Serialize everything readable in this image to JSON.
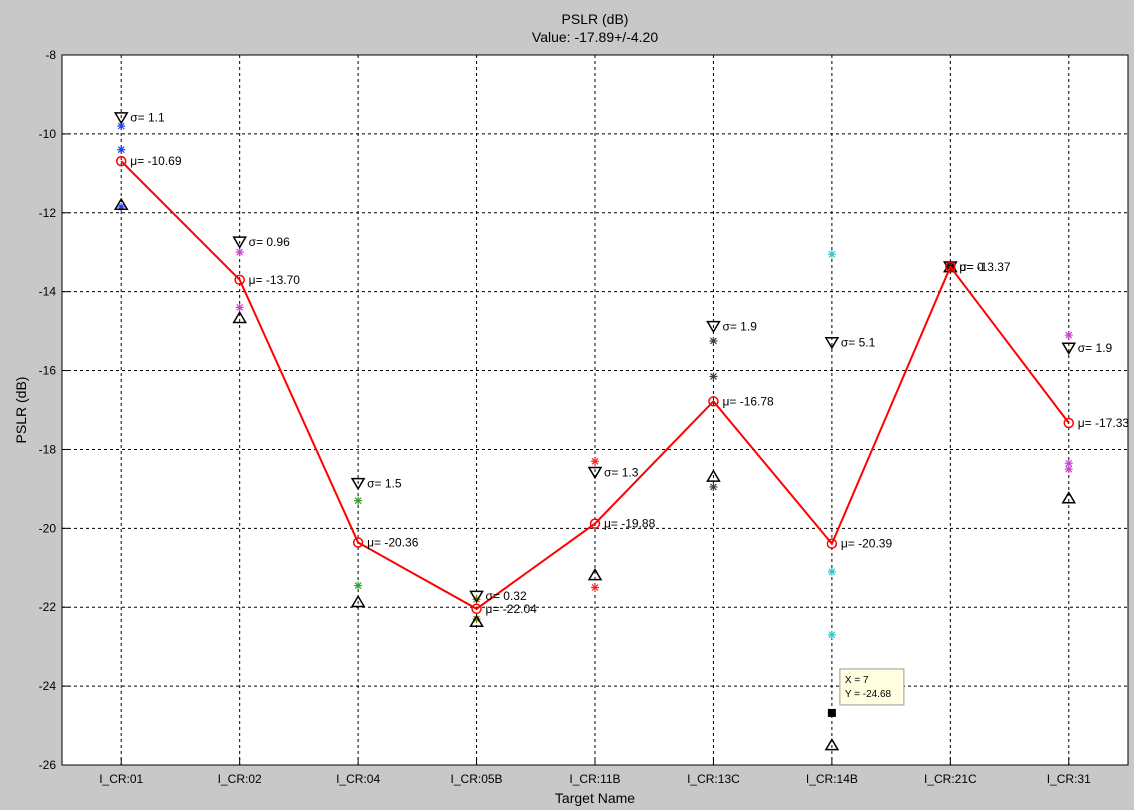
{
  "chart_data": {
    "type": "line",
    "title": "PSLR (dB)",
    "subtitle": "Value: -17.89+/-4.20",
    "xlabel": "Target Name",
    "ylabel": "PSLR (dB)",
    "categories": [
      "I_CR:01",
      "I_CR:02",
      "I_CR:04",
      "I_CR:05B",
      "I_CR:11B",
      "I_CR:13C",
      "I_CR:14B",
      "I_CR:21C",
      "I_CR:31"
    ],
    "ylim": [
      -26,
      -8
    ],
    "yticks": [
      -26,
      -24,
      -22,
      -20,
      -18,
      -16,
      -14,
      -12,
      -10,
      -8
    ],
    "grid": true,
    "mean": [
      -10.69,
      -13.7,
      -20.36,
      -22.04,
      -19.88,
      -16.78,
      -20.39,
      -13.37,
      -17.33
    ],
    "mean_labels": [
      "μ= -10.69",
      "μ= -13.70",
      "μ= -20.36",
      "μ= -22.04",
      "μ= -19.88",
      "μ= -16.78",
      "μ= -20.39",
      "μ= -13.37",
      "μ= -17.33"
    ],
    "sigma_labels": [
      "σ= 1.1",
      "σ= 0.96",
      "σ= 1.5",
      "σ= 0.32",
      "σ= 1.3",
      "σ= 1.9",
      "σ= 5.1",
      "σ= 0",
      "σ= 1.9"
    ],
    "upper": [
      -9.59,
      -12.74,
      -18.86,
      -21.72,
      -18.58,
      -14.88,
      -15.29,
      -13.37,
      -15.43
    ],
    "lower": [
      -11.79,
      -14.66,
      -21.86,
      -22.36,
      -21.18,
      -18.68,
      -25.49,
      -13.37,
      -19.23
    ],
    "samples": [
      {
        "x": 1,
        "y": -9.8,
        "color": "#2040ff"
      },
      {
        "x": 1,
        "y": -10.4,
        "color": "#2040ff"
      },
      {
        "x": 1,
        "y": -11.85,
        "color": "#2040ff"
      },
      {
        "x": 2,
        "y": -13.0,
        "color": "#d040d0"
      },
      {
        "x": 2,
        "y": -14.4,
        "color": "#d040d0"
      },
      {
        "x": 3,
        "y": -19.3,
        "color": "#30a030"
      },
      {
        "x": 3,
        "y": -21.45,
        "color": "#30a030"
      },
      {
        "x": 4,
        "y": -21.8,
        "color": "#808000"
      },
      {
        "x": 4,
        "y": -22.3,
        "color": "#808000"
      },
      {
        "x": 5,
        "y": -18.3,
        "color": "#ff2020"
      },
      {
        "x": 5,
        "y": -21.5,
        "color": "#ff2020"
      },
      {
        "x": 6,
        "y": -15.25,
        "color": "#404040"
      },
      {
        "x": 6,
        "y": -16.15,
        "color": "#404040"
      },
      {
        "x": 6,
        "y": -18.95,
        "color": "#404040"
      },
      {
        "x": 7,
        "y": -13.05,
        "color": "#30c8c8"
      },
      {
        "x": 7,
        "y": -21.1,
        "color": "#30c8c8"
      },
      {
        "x": 7,
        "y": -22.7,
        "color": "#30c8c8"
      },
      {
        "x": 8,
        "y": -13.37,
        "color": "#000000"
      },
      {
        "x": 9,
        "y": -15.1,
        "color": "#d040d0"
      },
      {
        "x": 9,
        "y": -18.35,
        "color": "#d040d0"
      },
      {
        "x": 9,
        "y": -18.5,
        "color": "#d040d0"
      }
    ],
    "datatip": {
      "x": 7,
      "y": -24.68,
      "line1": "X = 7",
      "line2": "Y = -24.68"
    }
  }
}
